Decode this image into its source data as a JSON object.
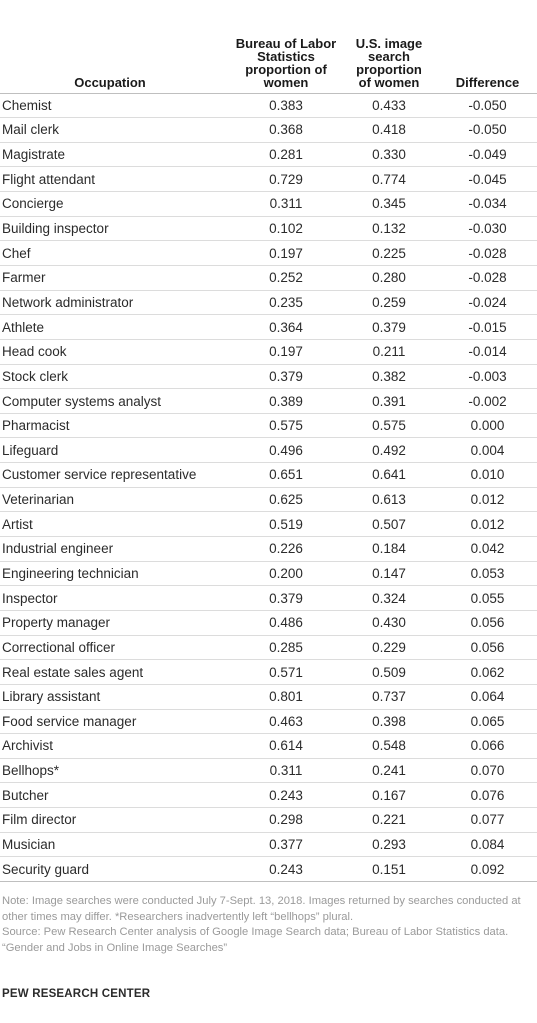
{
  "table": {
    "headers": {
      "occupation": "Occupation",
      "bls": [
        "Bureau of Labor",
        "Statistics",
        "proportion of",
        "women"
      ],
      "image": [
        "U.S. image",
        "search",
        "proportion",
        "of women"
      ],
      "difference": "Difference"
    },
    "rows": [
      [
        "Chemist",
        "0.383",
        "0.433",
        "-0.050"
      ],
      [
        "Mail clerk",
        "0.368",
        "0.418",
        "-0.050"
      ],
      [
        "Magistrate",
        "0.281",
        "0.330",
        "-0.049"
      ],
      [
        "Flight attendant",
        "0.729",
        "0.774",
        "-0.045"
      ],
      [
        "Concierge",
        "0.311",
        "0.345",
        "-0.034"
      ],
      [
        "Building inspector",
        "0.102",
        "0.132",
        "-0.030"
      ],
      [
        "Chef",
        "0.197",
        "0.225",
        "-0.028"
      ],
      [
        "Farmer",
        "0.252",
        "0.280",
        "-0.028"
      ],
      [
        "Network administrator",
        "0.235",
        "0.259",
        "-0.024"
      ],
      [
        "Athlete",
        "0.364",
        "0.379",
        "-0.015"
      ],
      [
        "Head cook",
        "0.197",
        "0.211",
        "-0.014"
      ],
      [
        "Stock clerk",
        "0.379",
        "0.382",
        "-0.003"
      ],
      [
        "Computer systems analyst",
        "0.389",
        "0.391",
        "-0.002"
      ],
      [
        "Pharmacist",
        "0.575",
        "0.575",
        "0.000"
      ],
      [
        "Lifeguard",
        "0.496",
        "0.492",
        "0.004"
      ],
      [
        "Customer service representative",
        "0.651",
        "0.641",
        "0.010"
      ],
      [
        "Veterinarian",
        "0.625",
        "0.613",
        "0.012"
      ],
      [
        "Artist",
        "0.519",
        "0.507",
        "0.012"
      ],
      [
        "Industrial engineer",
        "0.226",
        "0.184",
        "0.042"
      ],
      [
        "Engineering technician",
        "0.200",
        "0.147",
        "0.053"
      ],
      [
        "Inspector",
        "0.379",
        "0.324",
        "0.055"
      ],
      [
        "Property manager",
        "0.486",
        "0.430",
        "0.056"
      ],
      [
        "Correctional officer",
        "0.285",
        "0.229",
        "0.056"
      ],
      [
        "Real estate sales agent",
        "0.571",
        "0.509",
        "0.062"
      ],
      [
        "Library assistant",
        "0.801",
        "0.737",
        "0.064"
      ],
      [
        "Food service manager",
        "0.463",
        "0.398",
        "0.065"
      ],
      [
        "Archivist",
        "0.614",
        "0.548",
        "0.066"
      ],
      [
        "Bellhops*",
        "0.311",
        "0.241",
        "0.070"
      ],
      [
        "Butcher",
        "0.243",
        "0.167",
        "0.076"
      ],
      [
        "Film director",
        "0.298",
        "0.221",
        "0.077"
      ],
      [
        "Musician",
        "0.377",
        "0.293",
        "0.084"
      ],
      [
        "Security guard",
        "0.243",
        "0.151",
        "0.092"
      ]
    ]
  },
  "notes": {
    "note": "Note: Image searches were conducted July 7-Sept. 13, 2018. Images returned by searches conducted at other times may differ. *Researchers inadvertently left “bellhops” plural.",
    "source": "Source: Pew Research Center analysis of Google Image Search data; Bureau of Labor Statistics data.",
    "report": "“Gender and Jobs in Online Image Searches”"
  },
  "brand": "PEW RESEARCH CENTER"
}
